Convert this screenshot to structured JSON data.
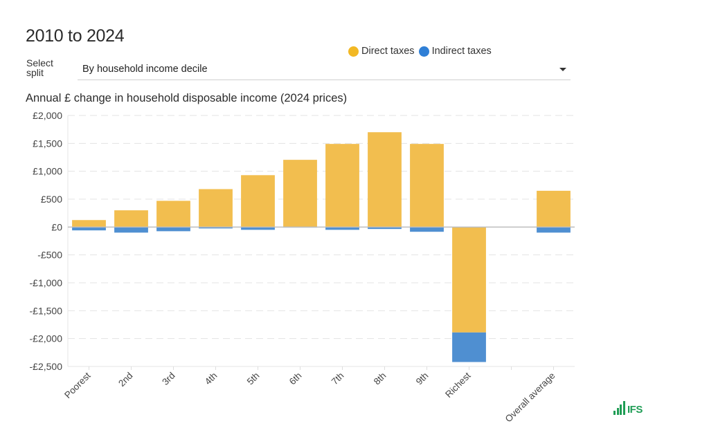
{
  "header": {
    "title": "2010 to 2024",
    "select_label": "Select split",
    "select_value": "By household income decile",
    "subtitle": "Annual £ change in household disposable income (2024 prices)"
  },
  "legend": [
    {
      "name": "Direct taxes",
      "color": "#f2be4f",
      "dot_color": "#f2b824"
    },
    {
      "name": "Indirect taxes",
      "color": "#4f8fd1",
      "dot_color": "#2f7fd6"
    }
  ],
  "logo": {
    "text": "IFS",
    "icon": "bar-chart-logo-icon"
  },
  "chart_data": {
    "type": "bar",
    "stacked": true,
    "title": "Annual £ change in household disposable income (2024 prices)",
    "xlabel": "",
    "ylabel": "",
    "categories": [
      "Poorest",
      "2nd",
      "3rd",
      "4th",
      "5th",
      "6th",
      "7th",
      "8th",
      "9th",
      "Richest",
      "",
      "Overall average"
    ],
    "series": [
      {
        "name": "Direct taxes",
        "color": "#f2be4f",
        "values": [
          125,
          300,
          470,
          680,
          930,
          1205,
          1490,
          1700,
          1490,
          -1890,
          null,
          650
        ]
      },
      {
        "name": "Indirect taxes",
        "color": "#4f8fd1",
        "values": [
          -60,
          -100,
          -75,
          -25,
          -50,
          -5,
          -50,
          -35,
          -85,
          -530,
          null,
          -100
        ]
      }
    ],
    "ylim": [
      -2500,
      2000
    ],
    "yticks": [
      2000,
      1500,
      1000,
      500,
      0,
      -500,
      -1000,
      -1500,
      -2000,
      -2500
    ],
    "ytick_labels": [
      "£2,000",
      "£1,500",
      "£1,000",
      "£500",
      "£0",
      "-£500",
      "-£1,000",
      "-£1,500",
      "-£2,000",
      "-£2,500"
    ],
    "grid": true,
    "legend_position": "top-right"
  }
}
